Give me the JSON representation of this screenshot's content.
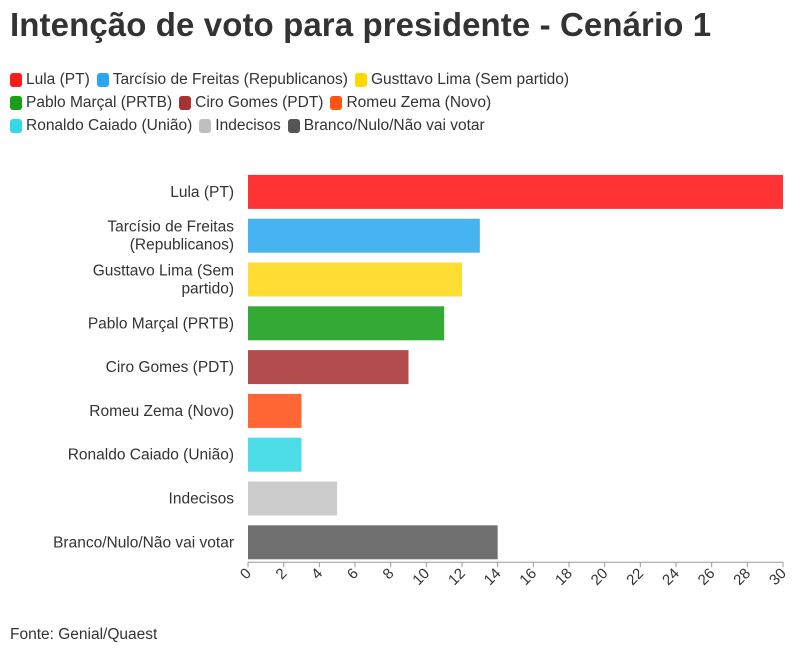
{
  "chart_data": {
    "type": "bar",
    "orientation": "horizontal",
    "title": "Intenção de voto para presidente - Cenário 1",
    "categories": [
      "Lula (PT)",
      "Tarcísio de Freitas (Republicanos)",
      "Gusttavo Lima (Sem partido)",
      "Pablo Marçal (PRTB)",
      "Ciro Gomes (PDT)",
      "Romeu Zema (Novo)",
      "Ronaldo Caiado (União)",
      "Indecisos",
      "Branco/Nulo/Não vai votar"
    ],
    "category_label_lines": [
      [
        "Lula (PT)"
      ],
      [
        "Tarcísio de Freitas",
        "(Republicanos)"
      ],
      [
        "Gusttavo Lima (Sem",
        "partido)"
      ],
      [
        "Pablo Marçal (PRTB)"
      ],
      [
        "Ciro Gomes (PDT)"
      ],
      [
        "Romeu Zema (Novo)"
      ],
      [
        "Ronaldo Caiado (União)"
      ],
      [
        "Indecisos"
      ],
      [
        "Branco/Nulo/Não vai votar"
      ]
    ],
    "values": [
      30,
      13,
      12,
      11,
      9,
      3,
      3,
      5,
      14
    ],
    "colors": [
      "#ff3333",
      "#47b3f0",
      "#ffdd33",
      "#33aa33",
      "#b34d4d",
      "#ff6633",
      "#4ddde8",
      "#cccccc",
      "#707070"
    ],
    "xlim": [
      0,
      30
    ],
    "xticks": [
      0,
      2,
      4,
      6,
      8,
      10,
      12,
      14,
      16,
      18,
      20,
      22,
      24,
      26,
      28,
      30
    ],
    "legend_placement": "top",
    "grid": false
  },
  "legend": {
    "rows": [
      [
        {
          "label": "Lula (PT)",
          "color": "#ff1a1a"
        },
        {
          "label": "Tarcísio de Freitas (Republicanos)",
          "color": "#2aa7f0"
        },
        {
          "label": "Gusttavo Lima (Sem partido)",
          "color": "#ffd700"
        }
      ],
      [
        {
          "label": "Pablo Marçal (PRTB)",
          "color": "#1a9e1a"
        },
        {
          "label": "Ciro Gomes (PDT)",
          "color": "#a83232"
        },
        {
          "label": "Romeu Zema (Novo)",
          "color": "#ff5511"
        }
      ],
      [
        {
          "label": "Ronaldo Caiado (União)",
          "color": "#33d9e6"
        },
        {
          "label": "Indecisos",
          "color": "#bfbfbf"
        },
        {
          "label": "Branco/Nulo/Não vai votar",
          "color": "#555555"
        }
      ]
    ]
  },
  "source": "Fonte: Genial/Quaest"
}
